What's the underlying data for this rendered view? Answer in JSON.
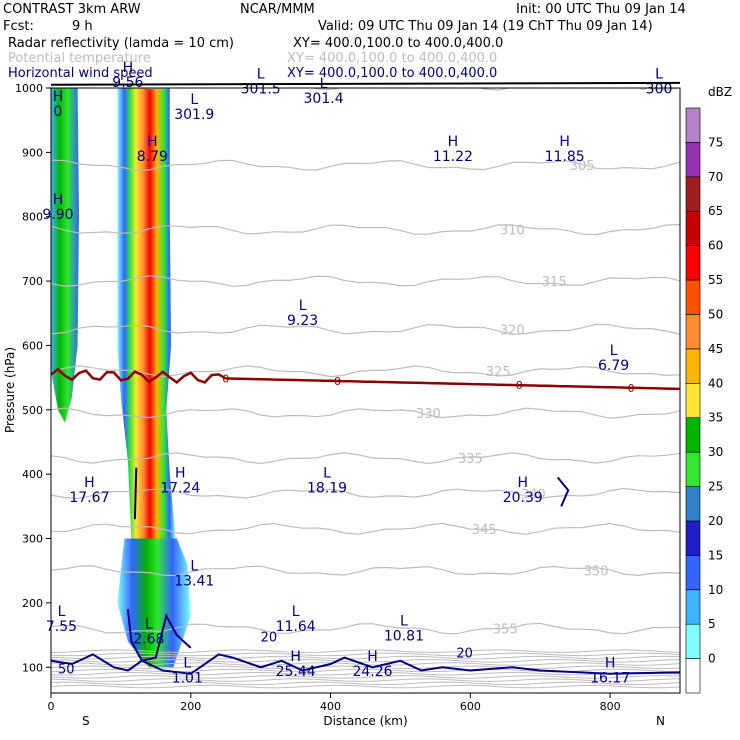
{
  "header": {
    "model": "CONTRAST   3km ARW",
    "center": "NCAR/MMM",
    "init": "Init: 00 UTC Thu 09 Jan 14",
    "fcst_label": "Fcst:",
    "fcst_value": "9 h",
    "valid": "Valid: 09 UTC Thu 09 Jan 14 (19 ChT Thu 09 Jan 14)",
    "fields": [
      {
        "name": "Radar reflectivity (lamda = 10 cm)",
        "xy": "XY= 400.0,100.0 to 400.0,400.0"
      },
      {
        "name": "Potential temperature",
        "xy": "XY= 400.0,100.0 to 400.0,400.0"
      },
      {
        "name": "Horizontal wind speed",
        "xy": "XY= 400.0,100.0 to 400.0,400.0"
      }
    ]
  },
  "colors": {
    "theta": "#bdbdbd",
    "wind": "#000080",
    "freezing": "#8b0000",
    "dbz": [
      "#ffffff",
      "#80ffff",
      "#3cb4ff",
      "#3264ff",
      "#1e1ec8",
      "#2e82c8",
      "#32e632",
      "#00b400",
      "#ffe632",
      "#ffb400",
      "#ff8c32",
      "#ff5000",
      "#ff0000",
      "#c80000",
      "#a01e1e",
      "#9632b4",
      "#b482c8"
    ]
  },
  "chart_data": {
    "type": "heatmap",
    "xlabel": "Distance (km)",
    "ylabel": "Pressure (hPa)",
    "xlim": [
      0,
      900
    ],
    "ylim": [
      1000,
      60
    ],
    "x_ticks": [
      "0",
      "200",
      "400",
      "600",
      "800"
    ],
    "y_ticks": [
      "100",
      "200",
      "300",
      "400",
      "500",
      "600",
      "700",
      "800",
      "900",
      "1000"
    ],
    "x_end_labels": {
      "left": "S",
      "right": "N"
    },
    "colorbar": {
      "unit": "dBZ",
      "levels": [
        "0",
        "5",
        "10",
        "15",
        "20",
        "25",
        "30",
        "35",
        "40",
        "45",
        "50",
        "55",
        "60",
        "65",
        "70",
        "75"
      ]
    },
    "theta_contours": [
      {
        "value": 300,
        "label": "300"
      },
      {
        "value": 305,
        "label": "305"
      },
      {
        "value": 310,
        "label": "310"
      },
      {
        "value": 315,
        "label": "315"
      },
      {
        "value": 320,
        "label": "320"
      },
      {
        "value": 325,
        "label": "325"
      },
      {
        "value": 330,
        "label": "330"
      },
      {
        "value": 335,
        "label": "335"
      },
      {
        "value": 340,
        "label": "340"
      },
      {
        "value": 345,
        "label": "345"
      },
      {
        "value": 350,
        "label": "350"
      },
      {
        "value": 355,
        "label": "355"
      }
    ],
    "wind_contour_labels": [
      "20",
      "50"
    ],
    "freezing_level_label": "0",
    "hl_markers": [
      {
        "kind": "L",
        "value": "1.01",
        "x": 195,
        "p": 100
      },
      {
        "kind": "H",
        "value": "25.44",
        "x": 350,
        "p": 110
      },
      {
        "kind": "H",
        "value": "24.26",
        "x": 460,
        "p": 110
      },
      {
        "kind": "H",
        "value": "16.17",
        "x": 800,
        "p": 100
      },
      {
        "kind": "L",
        "value": "2.68",
        "x": 140,
        "p": 160
      },
      {
        "kind": "L",
        "value": "7.55",
        "x": 15,
        "p": 180
      },
      {
        "kind": "L",
        "value": "11.64",
        "x": 350,
        "p": 180
      },
      {
        "kind": "L",
        "value": "10.81",
        "x": 505,
        "p": 165
      },
      {
        "kind": "L",
        "value": "13.41",
        "x": 205,
        "p": 250
      },
      {
        "kind": "H",
        "value": "17.67",
        "x": 55,
        "p": 380
      },
      {
        "kind": "H",
        "value": "17.24",
        "x": 185,
        "p": 395
      },
      {
        "kind": "L",
        "value": "18.19",
        "x": 395,
        "p": 395
      },
      {
        "kind": "H",
        "value": "20.39",
        "x": 675,
        "p": 380
      },
      {
        "kind": "L",
        "value": "6.79",
        "x": 805,
        "p": 585
      },
      {
        "kind": "L",
        "value": "9.23",
        "x": 360,
        "p": 655
      },
      {
        "kind": "H",
        "value": "8.79",
        "x": 145,
        "p": 910
      },
      {
        "kind": "H",
        "value": "11.22",
        "x": 575,
        "p": 910
      },
      {
        "kind": "H",
        "value": "11.85",
        "x": 735,
        "p": 910
      },
      {
        "kind": "H",
        "value": "9.90",
        "x": 10,
        "p": 820
      },
      {
        "kind": "L",
        "value": "301.9",
        "x": 205,
        "p": 975
      },
      {
        "kind": "L",
        "value": "301.4",
        "x": 390,
        "p": 1000
      },
      {
        "kind": "L",
        "value": "301.5",
        "x": 300,
        "p": 1015
      },
      {
        "kind": "H",
        "value": "9.56",
        "x": 110,
        "p": 1025
      },
      {
        "kind": "L",
        "value": "300",
        "x": 870,
        "p": 1015
      },
      {
        "kind": "H",
        "value": "0",
        "x": 10,
        "p": 980
      }
    ]
  }
}
